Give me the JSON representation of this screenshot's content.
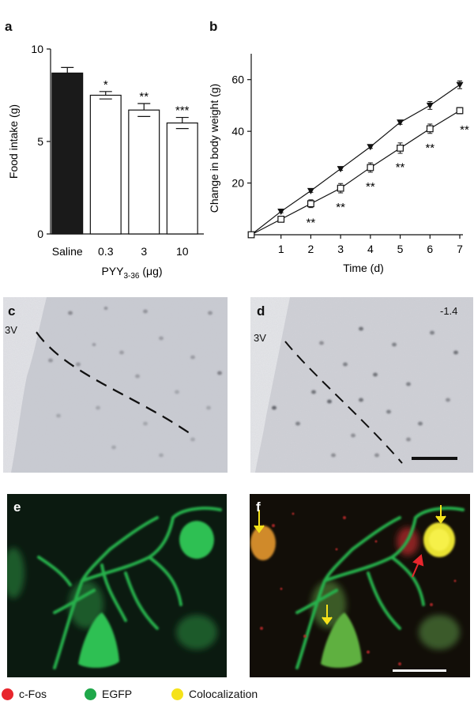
{
  "panels": {
    "a": "a",
    "b": "b",
    "c": "c",
    "d": "d",
    "e": "e",
    "f": "f"
  },
  "chart_data": [
    {
      "type": "bar",
      "panel": "a",
      "categories": [
        "Saline",
        "0.3",
        "3",
        "10"
      ],
      "values": [
        8.7,
        7.5,
        6.7,
        6.0
      ],
      "errors": [
        0.3,
        0.2,
        0.35,
        0.3
      ],
      "significance": [
        "",
        "*",
        "**",
        "***"
      ],
      "bar_colors": [
        "#1a1a1a",
        "#ffffff",
        "#ffffff",
        "#ffffff"
      ],
      "ylabel": "Food intake (g)",
      "xlabel": "PYY",
      "xlabel_sub": "3-36",
      "xlabel_unit": " (μg)",
      "ylim": [
        0,
        10
      ],
      "yticks": [
        0,
        5,
        10
      ]
    },
    {
      "type": "line",
      "panel": "b",
      "x": [
        0,
        1,
        2,
        3,
        4,
        5,
        6,
        7
      ],
      "series": [
        {
          "marker": "filled-triangle",
          "values": [
            0,
            9,
            17,
            25.5,
            34,
            43.5,
            50,
            58
          ],
          "errors": [
            0,
            0.5,
            0.6,
            0.6,
            0.6,
            0.8,
            1.5,
            1.5
          ]
        },
        {
          "marker": "open-square",
          "values": [
            0,
            6,
            12,
            18,
            26,
            33.5,
            41,
            48
          ],
          "errors": [
            0,
            0.8,
            1.5,
            1.8,
            1.8,
            2.0,
            1.8,
            1.2
          ]
        }
      ],
      "significance": [
        "",
        "",
        "**",
        "**",
        "**",
        "**",
        "**",
        "**"
      ],
      "xlabel": "Time (d)",
      "ylabel": "Change in body weight (g)",
      "xlim": [
        0,
        7
      ],
      "ylim": [
        0,
        70
      ],
      "yticks": [
        20,
        40,
        60
      ]
    }
  ],
  "micrographs": {
    "c_region": "3V",
    "d_region": "3V",
    "d_coordinate": "-1.4"
  },
  "legend": [
    {
      "label": "c-Fos",
      "color": "#e8262d"
    },
    {
      "label": "EGFP",
      "color": "#1fa84a"
    },
    {
      "label": "Colocalization",
      "color": "#f5e21a"
    }
  ]
}
